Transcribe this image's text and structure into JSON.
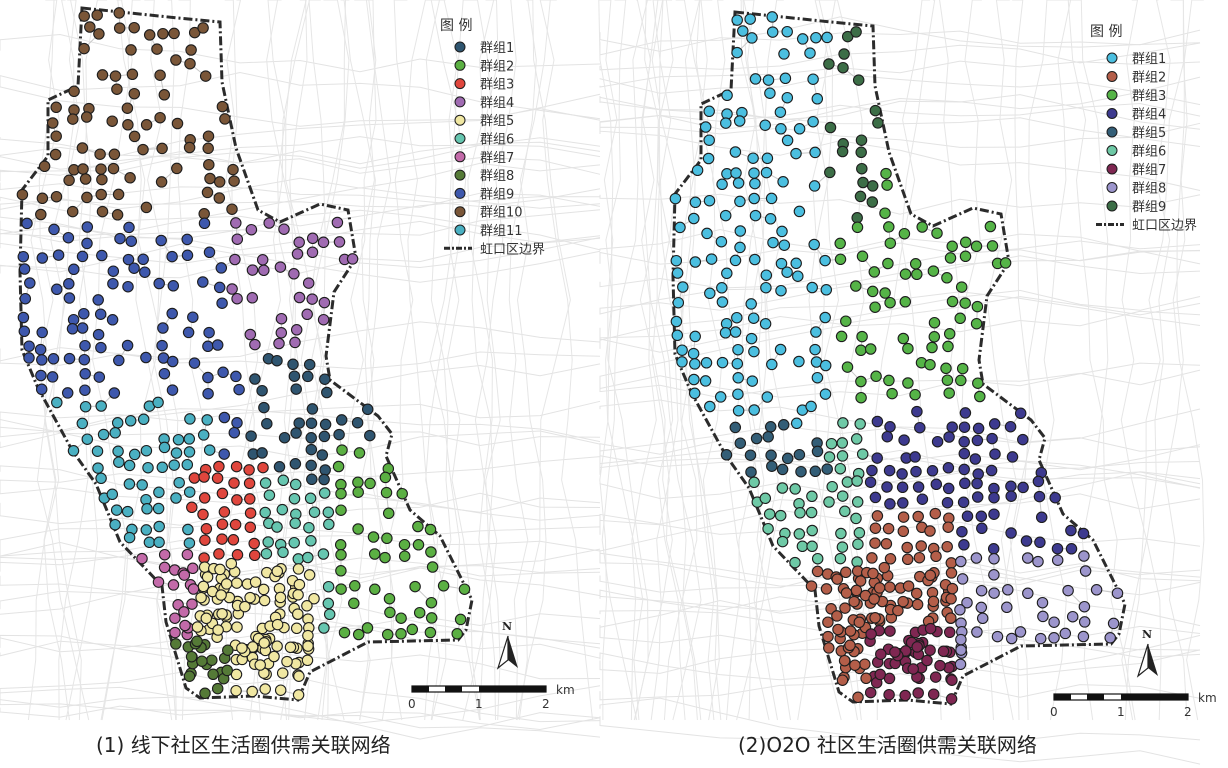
{
  "colors": {
    "left_groups": [
      "#2f5570",
      "#5bb043",
      "#e0463d",
      "#a06bb2",
      "#f0e7a2",
      "#66c6b0",
      "#c36aa9",
      "#557a37",
      "#3e58ad",
      "#7a5638",
      "#4ab0c2"
    ],
    "right_groups": [
      "#4bbfe0",
      "#b45e49",
      "#55b447",
      "#3d3a8f",
      "#335e77",
      "#6ec9a6",
      "#7f2752",
      "#9c95cc",
      "#3c6e47"
    ]
  },
  "maps": [
    {
      "id": "left",
      "caption": "(1) 线下社区生活圈供需关联网络",
      "legend": {
        "title": "图 例",
        "items": [
          "群组1",
          "群组2",
          "群组3",
          "群组4",
          "群组5",
          "群组6",
          "群组7",
          "群组8",
          "群组9",
          "群组10",
          "群组11"
        ],
        "boundary_label": "虹口区边界"
      },
      "scale": {
        "unit": "km",
        "ticks": [
          "0",
          "1",
          "2"
        ]
      },
      "north": "N"
    },
    {
      "id": "right",
      "caption": "(2)O2O 社区生活圈供需关联网络",
      "legend": {
        "title": "图 例",
        "items": [
          "群组1",
          "群组2",
          "群组3",
          "群组4",
          "群组5",
          "群组6",
          "群组7",
          "群组8",
          "群组9"
        ],
        "boundary_label": "虹口区边界"
      },
      "scale": {
        "unit": "km",
        "ticks": [
          "0",
          "1",
          "2"
        ]
      },
      "north": "N"
    }
  ]
}
